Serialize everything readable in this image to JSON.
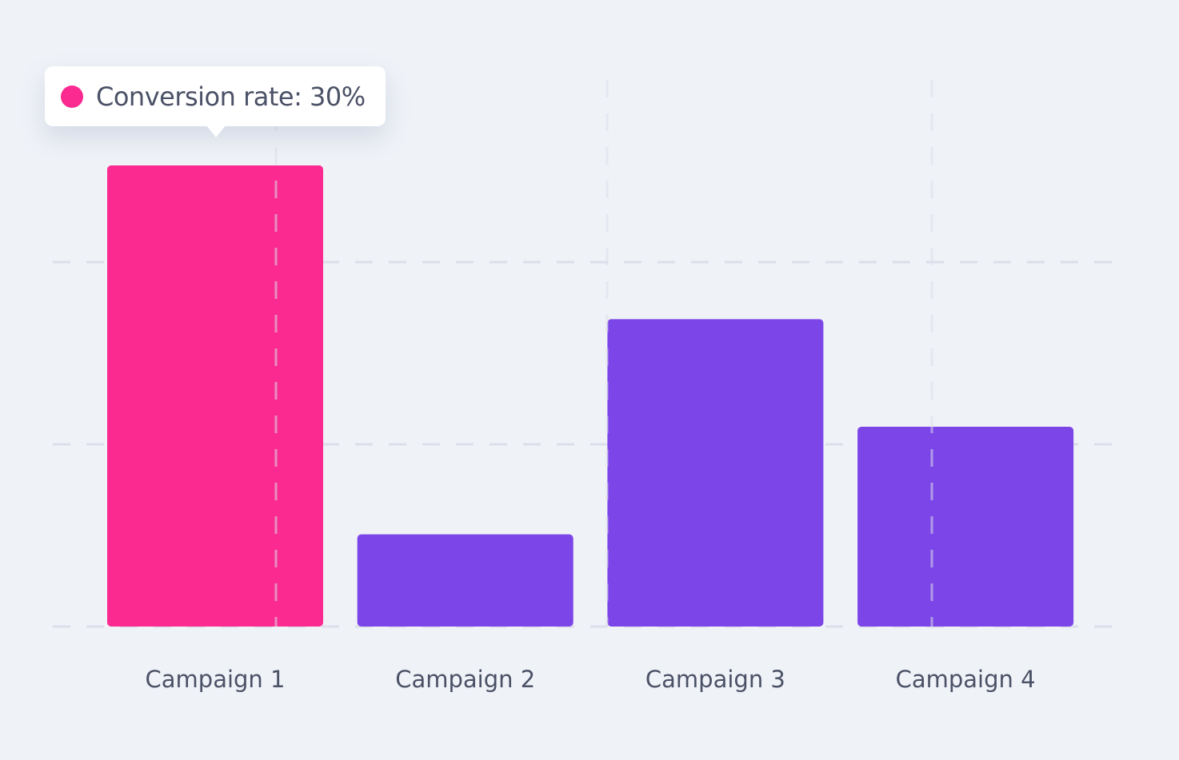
{
  "chart_data": {
    "type": "bar",
    "categories": [
      "Campaign 1",
      "Campaign 2",
      "Campaign 3",
      "Campaign 4"
    ],
    "values": [
      30,
      6,
      20,
      13
    ],
    "unit": "%",
    "title": "",
    "xlabel": "",
    "ylabel": "Conversion rate",
    "ylim": [
      0,
      30
    ],
    "grid": true,
    "highlighted_index": 0,
    "tooltip": {
      "label": "Conversion rate: 30%",
      "color": "#fb2a91"
    },
    "colors": {
      "highlight": "#fb2a91",
      "default": "#7c45e8",
      "grid": "#dcdfe9",
      "text": "#4b5166"
    }
  }
}
